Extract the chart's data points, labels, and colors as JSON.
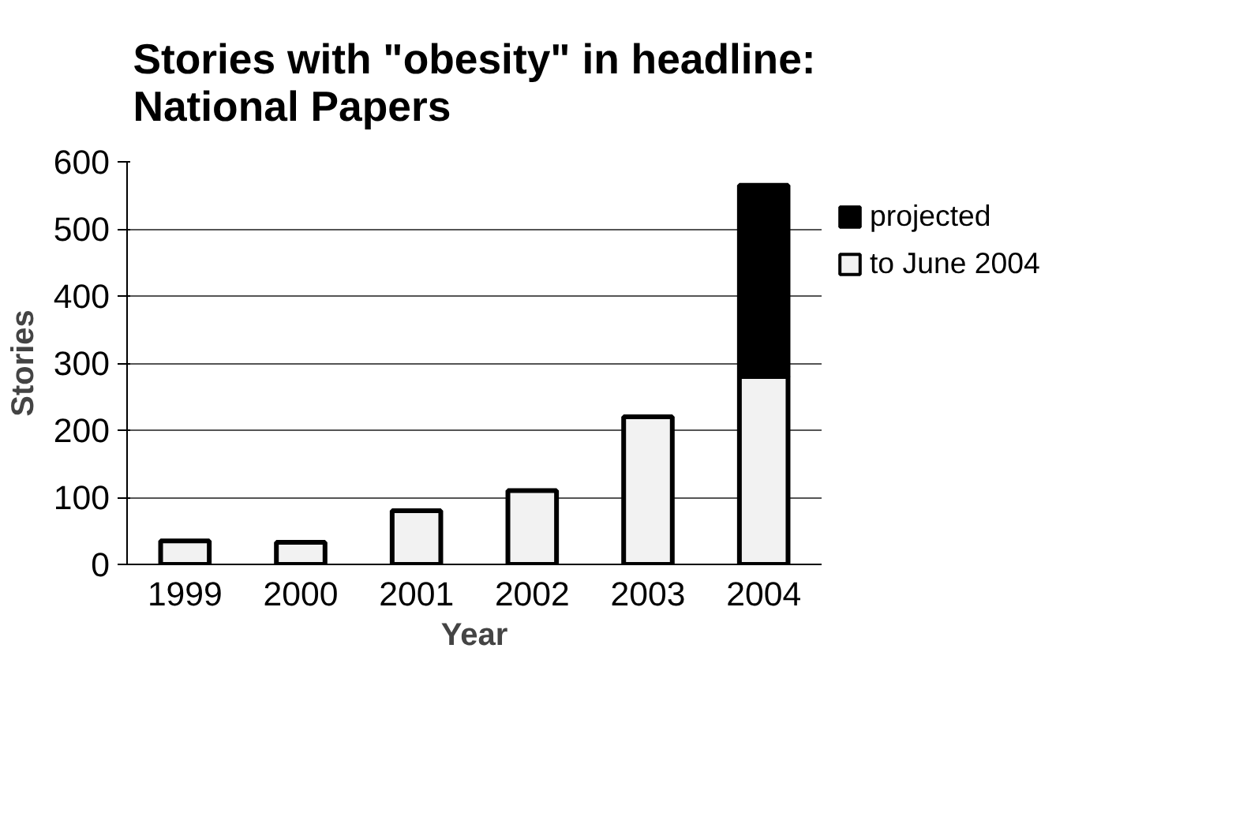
{
  "chart_data": {
    "type": "bar",
    "title": "Stories with \"obesity\" in headline:\nNational Papers",
    "xlabel": "Year",
    "ylabel": "Stories",
    "categories": [
      "1999",
      "2000",
      "2001",
      "2002",
      "2003",
      "2004"
    ],
    "stacked": true,
    "series": [
      {
        "name": "to June 2004",
        "color": "#f2f2f2",
        "values": [
          35,
          33,
          80,
          110,
          220,
          280
        ]
      },
      {
        "name": "projected",
        "color": "#000000",
        "values": [
          null,
          null,
          null,
          null,
          null,
          285
        ]
      }
    ],
    "ylim": [
      0,
      600
    ],
    "yticks": [
      0,
      100,
      200,
      300,
      400,
      500,
      600
    ],
    "grid": "y",
    "legend": "right"
  }
}
